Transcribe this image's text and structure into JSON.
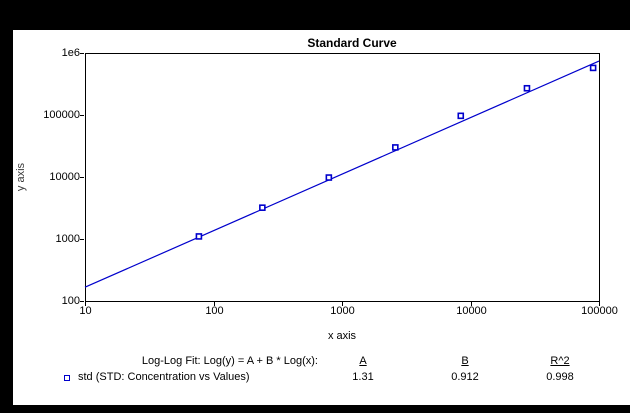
{
  "window": {
    "background_color": "#000000",
    "panel_color": "#ffffff",
    "accent_color": "#0000cc"
  },
  "chart_data": {
    "type": "scatter",
    "title": "Standard Curve",
    "xlabel": "x axis",
    "ylabel": "y axis",
    "x_scale": "log",
    "y_scale": "log",
    "xlim": [
      10,
      100000
    ],
    "ylim": [
      100,
      1000000
    ],
    "grid": false,
    "legend_position": "bottom-left",
    "x_ticks": [
      {
        "label": "10",
        "value": 10
      },
      {
        "label": "100",
        "value": 100
      },
      {
        "label": "1000",
        "value": 1000
      },
      {
        "label": "10000",
        "value": 10000
      },
      {
        "label": "100000",
        "value": 100000
      }
    ],
    "y_ticks": [
      {
        "label": "100",
        "value": 100
      },
      {
        "label": "1000",
        "value": 1000
      },
      {
        "label": "10000",
        "value": 10000
      },
      {
        "label": "100000",
        "value": 100000
      },
      {
        "label": "1e6",
        "value": 1000000
      }
    ],
    "series": [
      {
        "name": "std",
        "marker": "open-square",
        "color": "#0000cc",
        "x": [
          77,
          240,
          790,
          2600,
          8400,
          27500,
          90000
        ],
        "y": [
          1100,
          3200,
          9800,
          30000,
          97000,
          270000,
          575000
        ]
      }
    ],
    "fit": {
      "type": "log-log-linear",
      "label": "Log-Log Fit: Log(y) = A + B * Log(x):",
      "A": 1.31,
      "B": 0.912,
      "R2": 0.998,
      "color": "#0000cc"
    },
    "legend": [
      {
        "label": "std (STD: Concentration vs Values)",
        "marker": "open-square",
        "color": "#0000cc"
      }
    ]
  },
  "footer": {
    "fit_label": "Log-Log Fit: Log(y) = A + B * Log(x):",
    "col_a_header": "A",
    "col_b_header": "B",
    "col_r2_header": "R^2",
    "a_value": "1.31",
    "b_value": "0.912",
    "r2_value": "0.998",
    "legend_label": "std (STD: Concentration vs Values)"
  }
}
